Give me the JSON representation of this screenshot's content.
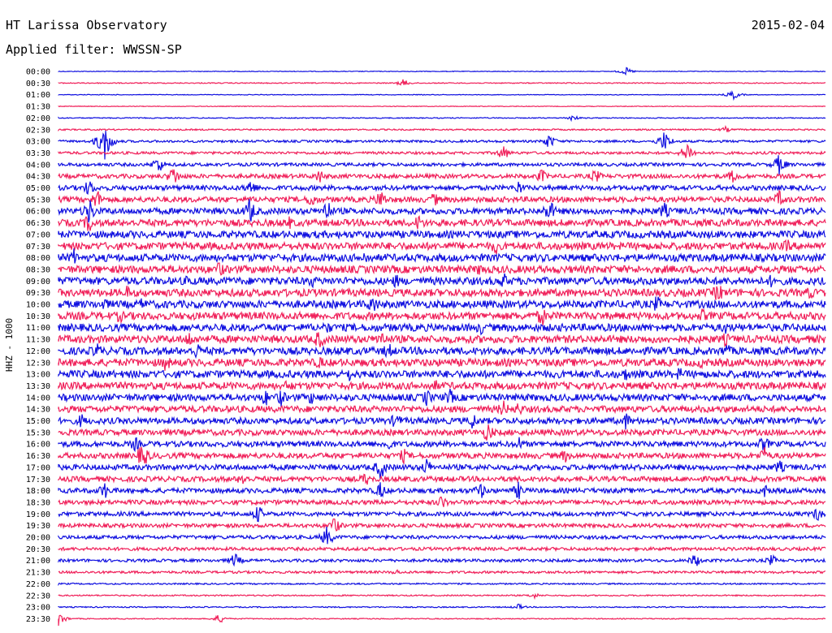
{
  "header": {
    "title": "HT Larissa Observatory",
    "date": "2015-02-04",
    "filter": "Applied filter: WWSSN-SP"
  },
  "chart_data": {
    "type": "line",
    "ylabel": "HHZ - 1000",
    "trace_colors": [
      "#1010e0",
      "#f0205a"
    ],
    "row_labels": [
      "00:00",
      "00:30",
      "01:00",
      "01:30",
      "02:00",
      "02:30",
      "03:00",
      "03:30",
      "04:00",
      "04:30",
      "05:00",
      "05:30",
      "06:00",
      "06:30",
      "07:00",
      "07:30",
      "08:00",
      "08:30",
      "09:00",
      "09:30",
      "10:00",
      "10:30",
      "11:00",
      "11:30",
      "12:00",
      "12:30",
      "13:00",
      "13:30",
      "14:00",
      "14:30",
      "15:00",
      "15:30",
      "16:00",
      "16:30",
      "17:00",
      "17:30",
      "18:00",
      "18:30",
      "19:00",
      "19:30",
      "20:00",
      "20:30",
      "21:00",
      "21:30",
      "22:00",
      "22:30",
      "23:00",
      "23:30"
    ],
    "noise_amplitude": [
      0.4,
      0.6,
      0.4,
      0.4,
      0.6,
      0.9,
      1.4,
      1.6,
      2.0,
      2.6,
      3.0,
      3.4,
      3.8,
      4.2,
      4.4,
      4.5,
      4.6,
      4.6,
      4.6,
      4.6,
      4.6,
      4.6,
      4.6,
      4.6,
      4.6,
      4.6,
      4.6,
      4.4,
      4.2,
      4.0,
      3.8,
      3.6,
      3.4,
      3.4,
      3.4,
      3.2,
      3.0,
      2.8,
      2.6,
      2.4,
      2.2,
      2.0,
      1.8,
      1.5,
      0.9,
      0.8,
      0.7,
      0.6
    ],
    "events": [
      {
        "row": 0,
        "t": 0.74,
        "amp": 5
      },
      {
        "row": 1,
        "t": 0.45,
        "amp": 5
      },
      {
        "row": 2,
        "t": 0.88,
        "amp": 6
      },
      {
        "row": 4,
        "t": 0.67,
        "amp": 4
      },
      {
        "row": 5,
        "t": 0.87,
        "amp": 4
      },
      {
        "row": 6,
        "t": 0.06,
        "amp": 26
      },
      {
        "row": 6,
        "t": 0.64,
        "amp": 10
      },
      {
        "row": 6,
        "t": 0.79,
        "amp": 14
      },
      {
        "row": 7,
        "t": 0.58,
        "amp": 10
      },
      {
        "row": 7,
        "t": 0.82,
        "amp": 14
      },
      {
        "row": 8,
        "t": 0.13,
        "amp": 12
      },
      {
        "row": 8,
        "t": 0.94,
        "amp": 14
      },
      {
        "row": 9,
        "t": 0.15,
        "amp": 14
      },
      {
        "row": 9,
        "t": 0.34,
        "amp": 10
      },
      {
        "row": 9,
        "t": 0.63,
        "amp": 10
      },
      {
        "row": 9,
        "t": 0.7,
        "amp": 10
      },
      {
        "row": 9,
        "t": 0.88,
        "amp": 10
      },
      {
        "row": 10,
        "t": 0.04,
        "amp": 12
      },
      {
        "row": 10,
        "t": 0.25,
        "amp": 12
      },
      {
        "row": 10,
        "t": 0.6,
        "amp": 10
      },
      {
        "row": 11,
        "t": 0.05,
        "amp": 14
      },
      {
        "row": 11,
        "t": 0.33,
        "amp": 12
      },
      {
        "row": 11,
        "t": 0.42,
        "amp": 14
      },
      {
        "row": 11,
        "t": 0.49,
        "amp": 10
      },
      {
        "row": 11,
        "t": 0.94,
        "amp": 12
      },
      {
        "row": 12,
        "t": 0.04,
        "amp": 18
      },
      {
        "row": 12,
        "t": 0.25,
        "amp": 18
      },
      {
        "row": 12,
        "t": 0.35,
        "amp": 16
      },
      {
        "row": 12,
        "t": 0.64,
        "amp": 16
      },
      {
        "row": 12,
        "t": 0.79,
        "amp": 12
      },
      {
        "row": 13,
        "t": 0.04,
        "amp": 14
      },
      {
        "row": 13,
        "t": 0.3,
        "amp": 10
      },
      {
        "row": 13,
        "t": 0.47,
        "amp": 12
      },
      {
        "row": 15,
        "t": 0.57,
        "amp": 12
      },
      {
        "row": 15,
        "t": 0.95,
        "amp": 10
      },
      {
        "row": 16,
        "t": 0.02,
        "amp": 12
      },
      {
        "row": 16,
        "t": 0.4,
        "amp": 10
      },
      {
        "row": 17,
        "t": 0.21,
        "amp": 12
      },
      {
        "row": 17,
        "t": 0.55,
        "amp": 10
      },
      {
        "row": 18,
        "t": 0.17,
        "amp": 10
      },
      {
        "row": 18,
        "t": 0.33,
        "amp": 10
      },
      {
        "row": 18,
        "t": 0.44,
        "amp": 10
      },
      {
        "row": 18,
        "t": 0.58,
        "amp": 12
      },
      {
        "row": 18,
        "t": 0.93,
        "amp": 10
      },
      {
        "row": 19,
        "t": 0.09,
        "amp": 10
      },
      {
        "row": 19,
        "t": 0.86,
        "amp": 14
      },
      {
        "row": 19,
        "t": 0.98,
        "amp": 10
      },
      {
        "row": 20,
        "t": 0.06,
        "amp": 10
      },
      {
        "row": 20,
        "t": 0.11,
        "amp": 10
      },
      {
        "row": 20,
        "t": 0.41,
        "amp": 14
      },
      {
        "row": 20,
        "t": 0.78,
        "amp": 12
      },
      {
        "row": 21,
        "t": 0.08,
        "amp": 10
      },
      {
        "row": 21,
        "t": 0.63,
        "amp": 14
      },
      {
        "row": 21,
        "t": 0.84,
        "amp": 10
      },
      {
        "row": 22,
        "t": 0.35,
        "amp": 10
      },
      {
        "row": 22,
        "t": 0.55,
        "amp": 10
      },
      {
        "row": 22,
        "t": 0.87,
        "amp": 10
      },
      {
        "row": 23,
        "t": 0.17,
        "amp": 12
      },
      {
        "row": 23,
        "t": 0.34,
        "amp": 14
      },
      {
        "row": 23,
        "t": 0.42,
        "amp": 14
      },
      {
        "row": 23,
        "t": 0.87,
        "amp": 10
      },
      {
        "row": 24,
        "t": 0.05,
        "amp": 12
      },
      {
        "row": 24,
        "t": 0.18,
        "amp": 12
      },
      {
        "row": 24,
        "t": 0.43,
        "amp": 12
      },
      {
        "row": 24,
        "t": 0.87,
        "amp": 12
      },
      {
        "row": 25,
        "t": 0.14,
        "amp": 12
      },
      {
        "row": 25,
        "t": 0.34,
        "amp": 10
      },
      {
        "row": 25,
        "t": 0.84,
        "amp": 10
      },
      {
        "row": 26,
        "t": 0.38,
        "amp": 10
      },
      {
        "row": 26,
        "t": 0.74,
        "amp": 10
      },
      {
        "row": 26,
        "t": 0.81,
        "amp": 10
      },
      {
        "row": 27,
        "t": 0.3,
        "amp": 10
      },
      {
        "row": 27,
        "t": 0.49,
        "amp": 10
      },
      {
        "row": 28,
        "t": 0.27,
        "amp": 12
      },
      {
        "row": 28,
        "t": 0.29,
        "amp": 12
      },
      {
        "row": 28,
        "t": 0.33,
        "amp": 10
      },
      {
        "row": 28,
        "t": 0.48,
        "amp": 12
      },
      {
        "row": 28,
        "t": 0.51,
        "amp": 12
      },
      {
        "row": 29,
        "t": 0.58,
        "amp": 12
      },
      {
        "row": 29,
        "t": 0.6,
        "amp": 10
      },
      {
        "row": 30,
        "t": 0.03,
        "amp": 10
      },
      {
        "row": 30,
        "t": 0.44,
        "amp": 12
      },
      {
        "row": 30,
        "t": 0.54,
        "amp": 12
      },
      {
        "row": 30,
        "t": 0.74,
        "amp": 12
      },
      {
        "row": 31,
        "t": 0.56,
        "amp": 14
      },
      {
        "row": 32,
        "t": 0.1,
        "amp": 10
      },
      {
        "row": 32,
        "t": 0.43,
        "amp": 10
      },
      {
        "row": 32,
        "t": 0.6,
        "amp": 10
      },
      {
        "row": 32,
        "t": 0.92,
        "amp": 12
      },
      {
        "row": 33,
        "t": 0.11,
        "amp": 18
      },
      {
        "row": 33,
        "t": 0.45,
        "amp": 10
      },
      {
        "row": 33,
        "t": 0.66,
        "amp": 10
      },
      {
        "row": 33,
        "t": 0.92,
        "amp": 12
      },
      {
        "row": 34,
        "t": 0.42,
        "amp": 16
      },
      {
        "row": 34,
        "t": 0.48,
        "amp": 12
      },
      {
        "row": 34,
        "t": 0.94,
        "amp": 10
      },
      {
        "row": 35,
        "t": 0.24,
        "amp": 10
      },
      {
        "row": 35,
        "t": 0.4,
        "amp": 10
      },
      {
        "row": 36,
        "t": 0.06,
        "amp": 12
      },
      {
        "row": 36,
        "t": 0.42,
        "amp": 12
      },
      {
        "row": 36,
        "t": 0.55,
        "amp": 12
      },
      {
        "row": 36,
        "t": 0.6,
        "amp": 12
      },
      {
        "row": 36,
        "t": 0.92,
        "amp": 10
      },
      {
        "row": 37,
        "t": 0.5,
        "amp": 10
      },
      {
        "row": 38,
        "t": 0.26,
        "amp": 12
      },
      {
        "row": 38,
        "t": 0.99,
        "amp": 10
      },
      {
        "row": 39,
        "t": 0.36,
        "amp": 12
      },
      {
        "row": 40,
        "t": 0.35,
        "amp": 14
      },
      {
        "row": 42,
        "t": 0.23,
        "amp": 10
      },
      {
        "row": 42,
        "t": 0.83,
        "amp": 10
      },
      {
        "row": 42,
        "t": 0.93,
        "amp": 8
      },
      {
        "row": 43,
        "t": 0.44,
        "amp": 4
      },
      {
        "row": 45,
        "t": 0.62,
        "amp": 4
      },
      {
        "row": 46,
        "t": 0.6,
        "amp": 4
      },
      {
        "row": 47,
        "t": 0.0,
        "amp": 10
      },
      {
        "row": 47,
        "t": 0.21,
        "amp": 6
      }
    ]
  }
}
